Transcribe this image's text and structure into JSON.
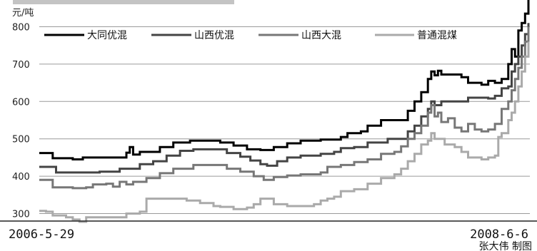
{
  "chart_data": {
    "type": "line",
    "ylabel": "元/吨",
    "ylim": [
      280,
      860
    ],
    "yticks": [
      300,
      400,
      500,
      600,
      700,
      800
    ],
    "x_start_label": "2006-5-29",
    "x_end_label": "2008-6-6",
    "legend_position": "top",
    "grid": true,
    "credit": "张大伟 制图",
    "series": [
      {
        "name": "大同优混",
        "color": "#000000",
        "points": [
          [
            0,
            462
          ],
          [
            2,
            462
          ],
          [
            4,
            448
          ],
          [
            8,
            448
          ],
          [
            10,
            445
          ],
          [
            13,
            450
          ],
          [
            22,
            450
          ],
          [
            26,
            463
          ],
          [
            27,
            478
          ],
          [
            28,
            458
          ],
          [
            30,
            465
          ],
          [
            34,
            465
          ],
          [
            36,
            478
          ],
          [
            40,
            490
          ],
          [
            45,
            495
          ],
          [
            52,
            495
          ],
          [
            54,
            490
          ],
          [
            58,
            482
          ],
          [
            62,
            472
          ],
          [
            66,
            470
          ],
          [
            70,
            478
          ],
          [
            74,
            488
          ],
          [
            78,
            495
          ],
          [
            84,
            498
          ],
          [
            90,
            505
          ],
          [
            92,
            515
          ],
          [
            96,
            520
          ],
          [
            98,
            535
          ],
          [
            102,
            550
          ],
          [
            107,
            550
          ],
          [
            110,
            575
          ],
          [
            112,
            600
          ],
          [
            114,
            625
          ],
          [
            116,
            660
          ],
          [
            117,
            680
          ],
          [
            118,
            670
          ],
          [
            119,
            682
          ],
          [
            120,
            672
          ],
          [
            124,
            672
          ],
          [
            126,
            665
          ],
          [
            128,
            650
          ],
          [
            132,
            645
          ],
          [
            134,
            655
          ],
          [
            136,
            650
          ],
          [
            138,
            660
          ],
          [
            140,
            700
          ],
          [
            141,
            740
          ],
          [
            142,
            720
          ],
          [
            143,
            790
          ],
          [
            144,
            810
          ],
          [
            145,
            835
          ],
          [
            146,
            880
          ]
        ]
      },
      {
        "name": "山西优混",
        "color": "#444444",
        "points": [
          [
            0,
            425
          ],
          [
            3,
            425
          ],
          [
            5,
            410
          ],
          [
            10,
            410
          ],
          [
            18,
            412
          ],
          [
            24,
            420
          ],
          [
            30,
            432
          ],
          [
            34,
            440
          ],
          [
            38,
            455
          ],
          [
            42,
            468
          ],
          [
            46,
            472
          ],
          [
            52,
            472
          ],
          [
            56,
            462
          ],
          [
            60,
            452
          ],
          [
            63,
            442
          ],
          [
            66,
            432
          ],
          [
            68,
            428
          ],
          [
            71,
            440
          ],
          [
            74,
            450
          ],
          [
            78,
            455
          ],
          [
            84,
            460
          ],
          [
            88,
            465
          ],
          [
            90,
            475
          ],
          [
            94,
            478
          ],
          [
            98,
            490
          ],
          [
            104,
            500
          ],
          [
            107,
            500
          ],
          [
            110,
            520
          ],
          [
            112,
            535
          ],
          [
            114,
            560
          ],
          [
            116,
            580
          ],
          [
            117,
            600
          ],
          [
            118,
            590
          ],
          [
            120,
            600
          ],
          [
            126,
            600
          ],
          [
            128,
            610
          ],
          [
            134,
            608
          ],
          [
            136,
            615
          ],
          [
            138,
            635
          ],
          [
            140,
            640
          ],
          [
            141,
            680
          ],
          [
            142,
            700
          ],
          [
            143,
            720
          ],
          [
            144,
            750
          ],
          [
            145,
            780
          ],
          [
            146,
            810
          ]
        ]
      },
      {
        "name": "山西大混",
        "color": "#777777",
        "points": [
          [
            0,
            390
          ],
          [
            2,
            390
          ],
          [
            4,
            370
          ],
          [
            10,
            368
          ],
          [
            14,
            370
          ],
          [
            16,
            378
          ],
          [
            20,
            380
          ],
          [
            22,
            372
          ],
          [
            24,
            385
          ],
          [
            26,
            378
          ],
          [
            28,
            385
          ],
          [
            32,
            395
          ],
          [
            36,
            408
          ],
          [
            40,
            420
          ],
          [
            46,
            430
          ],
          [
            52,
            430
          ],
          [
            56,
            420
          ],
          [
            60,
            412
          ],
          [
            64,
            400
          ],
          [
            67,
            390
          ],
          [
            70,
            398
          ],
          [
            74,
            402
          ],
          [
            78,
            405
          ],
          [
            84,
            410
          ],
          [
            86,
            425
          ],
          [
            90,
            430
          ],
          [
            94,
            438
          ],
          [
            98,
            445
          ],
          [
            102,
            460
          ],
          [
            106,
            465
          ],
          [
            108,
            480
          ],
          [
            110,
            500
          ],
          [
            112,
            515
          ],
          [
            114,
            535
          ],
          [
            116,
            570
          ],
          [
            117,
            590
          ],
          [
            118,
            560
          ],
          [
            119,
            570
          ],
          [
            120,
            545
          ],
          [
            122,
            555
          ],
          [
            124,
            530
          ],
          [
            126,
            520
          ],
          [
            128,
            540
          ],
          [
            130,
            525
          ],
          [
            132,
            520
          ],
          [
            134,
            525
          ],
          [
            136,
            540
          ],
          [
            138,
            580
          ],
          [
            140,
            600
          ],
          [
            141,
            630
          ],
          [
            142,
            660
          ],
          [
            143,
            690
          ],
          [
            144,
            720
          ],
          [
            145,
            760
          ],
          [
            146,
            800
          ]
        ]
      },
      {
        "name": "普通混煤",
        "color": "#aaaaaa",
        "points": [
          [
            0,
            307
          ],
          [
            2,
            305
          ],
          [
            4,
            295
          ],
          [
            8,
            290
          ],
          [
            10,
            284
          ],
          [
            12,
            278
          ],
          [
            14,
            290
          ],
          [
            22,
            290
          ],
          [
            26,
            300
          ],
          [
            30,
            305
          ],
          [
            32,
            340
          ],
          [
            40,
            340
          ],
          [
            44,
            335
          ],
          [
            48,
            328
          ],
          [
            52,
            320
          ],
          [
            54,
            318
          ],
          [
            58,
            312
          ],
          [
            62,
            316
          ],
          [
            64,
            325
          ],
          [
            66,
            340
          ],
          [
            70,
            325
          ],
          [
            74,
            320
          ],
          [
            78,
            320
          ],
          [
            82,
            325
          ],
          [
            84,
            335
          ],
          [
            86,
            340
          ],
          [
            88,
            345
          ],
          [
            90,
            360
          ],
          [
            94,
            365
          ],
          [
            98,
            380
          ],
          [
            102,
            395
          ],
          [
            106,
            405
          ],
          [
            108,
            420
          ],
          [
            110,
            440
          ],
          [
            112,
            460
          ],
          [
            114,
            485
          ],
          [
            116,
            495
          ],
          [
            117,
            515
          ],
          [
            118,
            500
          ],
          [
            120,
            500
          ],
          [
            121,
            485
          ],
          [
            124,
            478
          ],
          [
            126,
            465
          ],
          [
            128,
            450
          ],
          [
            132,
            445
          ],
          [
            134,
            450
          ],
          [
            136,
            455
          ],
          [
            137,
            505
          ],
          [
            138,
            515
          ],
          [
            140,
            550
          ],
          [
            141,
            570
          ],
          [
            142,
            600
          ],
          [
            143,
            640
          ],
          [
            144,
            680
          ],
          [
            145,
            720
          ],
          [
            146,
            760
          ]
        ]
      }
    ]
  }
}
